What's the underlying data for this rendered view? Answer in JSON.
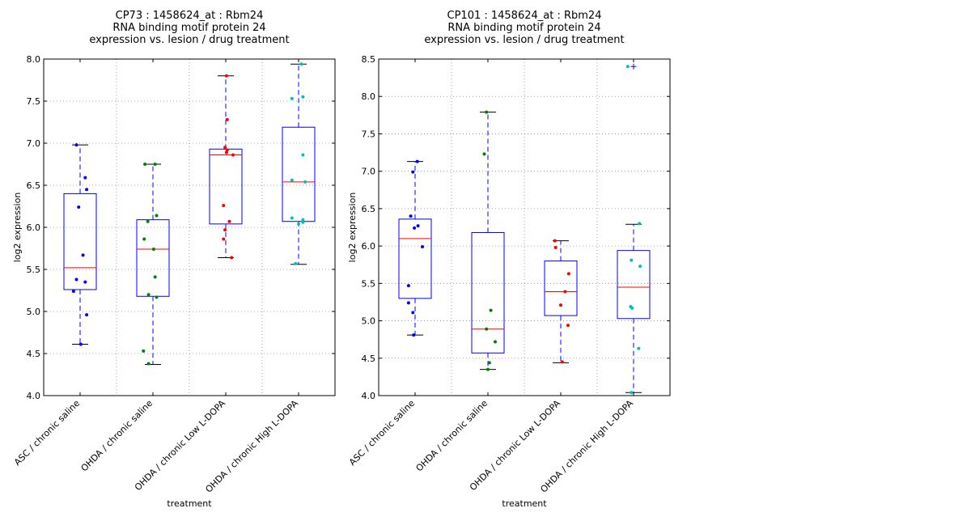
{
  "chart_data": [
    {
      "type": "box",
      "title_lines": [
        "CP73 : 1458624_at : Rbm24",
        "RNA binding motif protein 24",
        "expression vs. lesion / drug treatment"
      ],
      "xlabel": "treatment",
      "ylabel": "log2 expression",
      "ylim": [
        4.0,
        8.0
      ],
      "yticks": [
        "4.0",
        "4.5",
        "5.0",
        "5.5",
        "6.0",
        "6.5",
        "7.0",
        "7.5",
        "8.0"
      ],
      "grid": true,
      "categories": [
        "ASC / chronic saline",
        "OHDA / chronic saline",
        "OHDA / chronic Low L-DOPA",
        "OHDA / chronic High L-DOPA"
      ],
      "colors": [
        "#0000ff",
        "#008000",
        "#ff0000",
        "#00bfbf"
      ],
      "boxes": [
        {
          "q1": 5.26,
          "median": 5.52,
          "q3": 6.4,
          "whisker_low": 4.61,
          "whisker_high": 6.98,
          "fliers": []
        },
        {
          "q1": 5.18,
          "median": 5.74,
          "q3": 6.09,
          "whisker_low": 4.37,
          "whisker_high": 6.75,
          "fliers": []
        },
        {
          "q1": 6.04,
          "median": 6.86,
          "q3": 6.93,
          "whisker_low": 5.64,
          "whisker_high": 7.8,
          "fliers": []
        },
        {
          "q1": 6.07,
          "median": 6.54,
          "q3": 7.19,
          "whisker_low": 5.56,
          "whisker_high": 7.94,
          "fliers": []
        }
      ],
      "points": [
        [
          [
            -0.05,
            6.98
          ],
          [
            0.07,
            6.59
          ],
          [
            0.09,
            6.45
          ],
          [
            -0.02,
            6.24
          ],
          [
            0.04,
            5.67
          ],
          [
            -0.05,
            5.38
          ],
          [
            0.07,
            5.35
          ],
          [
            -0.09,
            5.24
          ],
          [
            0.09,
            4.96
          ],
          [
            0.01,
            4.61
          ]
        ],
        [
          [
            -0.11,
            6.75
          ],
          [
            0.03,
            6.75
          ],
          [
            0.05,
            6.14
          ],
          [
            -0.07,
            6.07
          ],
          [
            -0.12,
            5.86
          ],
          [
            0.01,
            5.74
          ],
          [
            0.03,
            5.41
          ],
          [
            -0.06,
            5.2
          ],
          [
            0.05,
            5.17
          ],
          [
            -0.13,
            4.53
          ],
          [
            -0.06,
            4.38
          ]
        ],
        [
          [
            0.01,
            7.8
          ],
          [
            0.02,
            7.28
          ],
          [
            -0.01,
            6.95
          ],
          [
            0.02,
            6.92
          ],
          [
            0.01,
            6.89
          ],
          [
            0.1,
            6.86
          ],
          [
            -0.03,
            6.26
          ],
          [
            0.05,
            6.07
          ],
          [
            -0.01,
            5.97
          ],
          [
            -0.03,
            5.86
          ],
          [
            0.08,
            5.64
          ]
        ],
        [
          [
            0.04,
            7.94
          ],
          [
            -0.09,
            7.53
          ],
          [
            0.06,
            7.55
          ],
          [
            0.06,
            6.86
          ],
          [
            -0.09,
            6.56
          ],
          [
            0.09,
            6.54
          ],
          [
            -0.09,
            6.11
          ],
          [
            0.06,
            6.09
          ],
          [
            0.06,
            6.06
          ],
          [
            0.0,
            6.04
          ],
          [
            -0.04,
            5.57
          ]
        ]
      ]
    },
    {
      "type": "box",
      "title_lines": [
        "CP101 : 1458624_at : Rbm24",
        "RNA binding motif protein 24",
        "expression vs. lesion / drug treatment"
      ],
      "xlabel": "treatment",
      "ylabel": "log2 expression",
      "ylim": [
        4.0,
        8.5
      ],
      "yticks": [
        "4.0",
        "4.5",
        "5.0",
        "5.5",
        "6.0",
        "6.5",
        "7.0",
        "7.5",
        "8.0",
        "8.5"
      ],
      "grid": true,
      "categories": [
        "ASC / chronic saline",
        "OHDA / chronic saline",
        "OHDA / chronic Low L-DOPA",
        "OHDA / chronic High L-DOPA"
      ],
      "colors": [
        "#0000ff",
        "#008000",
        "#ff0000",
        "#00bfbf"
      ],
      "boxes": [
        {
          "q1": 5.3,
          "median": 6.1,
          "q3": 6.36,
          "whisker_low": 4.81,
          "whisker_high": 7.13,
          "fliers": []
        },
        {
          "q1": 4.57,
          "median": 4.89,
          "q3": 6.18,
          "whisker_low": 4.35,
          "whisker_high": 7.79,
          "fliers": []
        },
        {
          "q1": 5.07,
          "median": 5.39,
          "q3": 5.8,
          "whisker_low": 4.44,
          "whisker_high": 6.07,
          "fliers": []
        },
        {
          "q1": 5.03,
          "median": 5.45,
          "q3": 5.94,
          "whisker_low": 4.04,
          "whisker_high": 6.29,
          "fliers": [
            8.4
          ]
        }
      ],
      "points": [
        [
          [
            0.03,
            7.13
          ],
          [
            -0.03,
            6.99
          ],
          [
            -0.06,
            6.4
          ],
          [
            0.04,
            6.27
          ],
          [
            -0.01,
            6.24
          ],
          [
            0.1,
            5.99
          ],
          [
            -0.09,
            5.47
          ],
          [
            -0.09,
            5.24
          ],
          [
            -0.03,
            5.11
          ],
          [
            -0.02,
            4.81
          ]
        ],
        [
          [
            -0.02,
            7.79
          ],
          [
            -0.05,
            7.23
          ],
          [
            0.04,
            5.14
          ],
          [
            -0.02,
            4.89
          ],
          [
            0.1,
            4.72
          ],
          [
            0.02,
            4.44
          ],
          [
            0.0,
            4.35
          ]
        ],
        [
          [
            -0.08,
            6.07
          ],
          [
            -0.07,
            5.98
          ],
          [
            0.11,
            5.63
          ],
          [
            0.06,
            5.39
          ],
          [
            0.0,
            5.21
          ],
          [
            0.1,
            4.94
          ],
          [
            0.02,
            4.45
          ]
        ],
        [
          [
            -0.08,
            8.4
          ],
          [
            0.08,
            6.3
          ],
          [
            0.09,
            5.73
          ],
          [
            -0.03,
            5.81
          ],
          [
            -0.04,
            5.19
          ],
          [
            -0.02,
            5.17
          ],
          [
            0.07,
            4.63
          ],
          [
            -0.03,
            4.04
          ]
        ]
      ]
    }
  ]
}
